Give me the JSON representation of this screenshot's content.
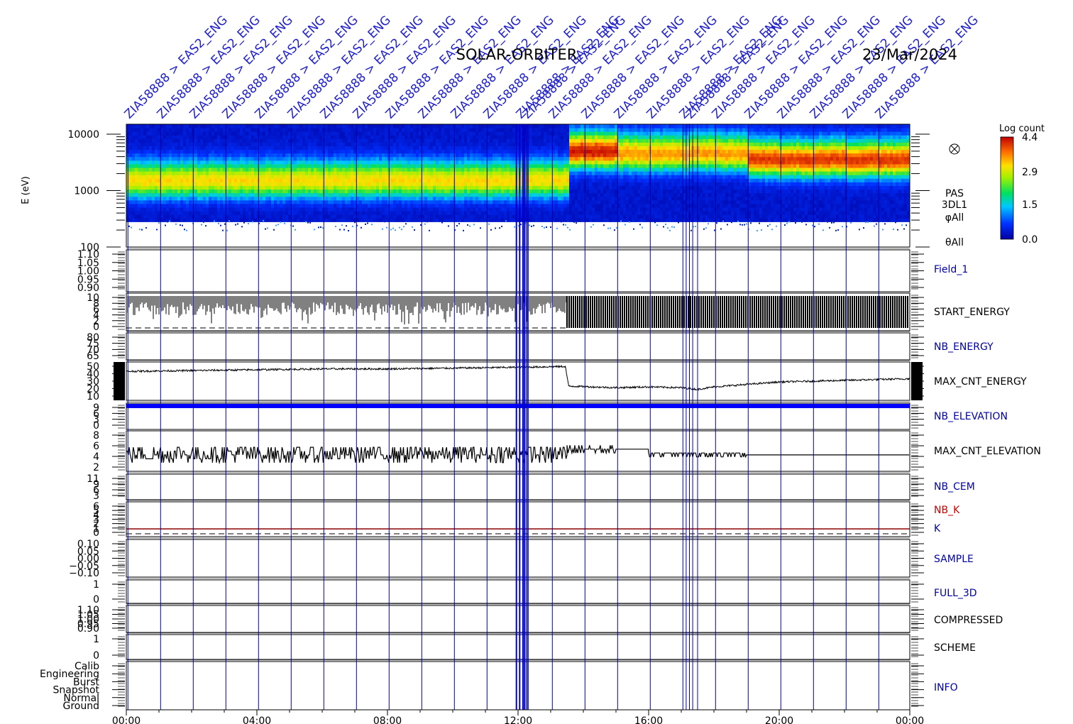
{
  "header": {
    "mission": "SOLAR-ORBITER",
    "date": "23/Mar/2024"
  },
  "event_label": "ZIA58888 > EAS2_ENG",
  "event_hours": [
    0.05,
    1.05,
    2.05,
    3.05,
    4.05,
    5.05,
    6.05,
    7.05,
    8.05,
    9.05,
    10.05,
    11.05,
    12.05,
    12.25,
    13.05,
    14.05,
    15.05,
    16.05,
    17.05,
    17.25,
    18.05,
    19.05,
    20.05,
    21.05,
    22.05,
    23.05
  ],
  "chart_data": {
    "type": "heatmap",
    "x_axis": {
      "range_hours": [
        0,
        24
      ],
      "tick_labels": [
        "00:00",
        "04:00",
        "08:00",
        "12:00",
        "16:00",
        "20:00",
        "00:00"
      ]
    },
    "spectrogram": {
      "ylabel": "E (eV)",
      "y_scale": "log",
      "y_range": [
        100,
        15000
      ],
      "y_ticks": [
        "10000",
        "1000",
        "100"
      ],
      "label_lines": [
        "PAS",
        "3DL1",
        "φAll",
        "θAll"
      ],
      "colorbar": {
        "title": "Log count",
        "ticks": [
          "4.4",
          "2.9",
          "1.5",
          "0.0"
        ],
        "range": [
          0.0,
          4.4
        ]
      },
      "peak_energy_segments": [
        {
          "from_hour": 0,
          "to_hour": 13.5,
          "peak_eV": 1500,
          "peak_log_count": 3.2
        },
        {
          "from_hour": 13.5,
          "to_hour": 15.0,
          "peak_eV": 5000,
          "peak_log_count": 4.4
        },
        {
          "from_hour": 15.0,
          "to_hour": 19.0,
          "peak_eV": 4500,
          "peak_log_count": 3.6
        },
        {
          "from_hour": 19.0,
          "to_hour": 24.0,
          "peak_eV": 3500,
          "peak_log_count": 4.2
        }
      ]
    },
    "panels": [
      {
        "name": "Field_1",
        "label_color": "#0000aa",
        "ticks": [
          "1.10",
          "1.05",
          "1.00",
          "0.95",
          "0.90"
        ],
        "y_range": [
          0.9,
          1.1
        ]
      },
      {
        "name": "START_ENERGY",
        "label_color": "#000000",
        "ticks": [
          "10",
          "8",
          "6",
          "4",
          "2",
          "0"
        ],
        "y_range": [
          0,
          10
        ],
        "series": [
          {
            "from_hour": 0,
            "to_hour": 13.5,
            "style": "dense-bars",
            "typical": 8
          },
          {
            "from_hour": 13.5,
            "to_hour": 24,
            "style": "solid-fill",
            "typical": 10
          }
        ]
      },
      {
        "name": "NB_ENERGY",
        "label_color": "#0000aa",
        "ticks": [
          "80",
          "75",
          "70",
          "65"
        ],
        "y_range": [
          65,
          80
        ]
      },
      {
        "name": "MAX_CNT_ENERGY",
        "label_color": "#000000",
        "ticks": [
          "50",
          "40",
          "30",
          "20",
          "10"
        ],
        "y_range": [
          10,
          50
        ],
        "series": [
          {
            "x_hours": [
              0,
              2,
              4,
              6,
              8,
              10,
              12,
              13.45,
              13.55,
              15,
              16,
              17,
              17.5,
              18,
              19,
              20,
              22,
              24
            ],
            "values": [
              42,
              43,
              44,
              45,
              45,
              46,
              47,
              48,
              24,
              22,
              23,
              22,
              20,
              23,
              26,
              29,
              31,
              33
            ]
          }
        ]
      },
      {
        "name": "NB_ELEVATION",
        "label_color": "#0000aa",
        "ticks": [
          "9",
          "6",
          "3",
          "0"
        ],
        "y_range": [
          0,
          9
        ],
        "series": [
          {
            "from_hour": 0,
            "to_hour": 24,
            "value": 9,
            "color": "#0000ff"
          }
        ]
      },
      {
        "name": "MAX_CNT_ELEVATION",
        "label_color": "#000000",
        "ticks": [
          "8",
          "6",
          "4",
          "2"
        ],
        "y_range": [
          0,
          9
        ],
        "series": [
          {
            "segments": [
              {
                "from_hour": 0,
                "to_hour": 13.5,
                "min": 1.5,
                "max": 6
              },
              {
                "from_hour": 13.5,
                "to_hour": 15.0,
                "min": 4,
                "max": 6
              },
              {
                "from_hour": 15.0,
                "to_hour": 16.0,
                "min": 5,
                "max": 5.5
              },
              {
                "from_hour": 16.0,
                "to_hour": 19.0,
                "min": 3,
                "max": 4.5
              },
              {
                "from_hour": 19.0,
                "to_hour": 24.0,
                "min": 3.5,
                "max": 4
              }
            ]
          }
        ]
      },
      {
        "name": "NB_CEM",
        "label_color": "#0000aa",
        "ticks": [
          "11",
          "9",
          "6",
          "3"
        ],
        "y_range": [
          0,
          11
        ]
      },
      {
        "name": "NB_K",
        "label_color": "#cc0000",
        "ticks": [
          "6",
          "5",
          "4",
          "3",
          "2",
          "1",
          "0"
        ],
        "y_range": [
          0,
          6
        ],
        "extra_label": "K",
        "extra_label_color": "#0000aa",
        "series": [
          {
            "from_hour": 0,
            "to_hour": 24,
            "value": 1,
            "color": "#8b0000"
          }
        ]
      },
      {
        "name": "SAMPLE",
        "label_color": "#0000aa",
        "ticks": [
          "0.10",
          "0.05",
          "0.00",
          "−0.05",
          "−0.10"
        ],
        "y_range": [
          -0.1,
          0.1
        ]
      },
      {
        "name": "FULL_3D",
        "label_color": "#0000aa",
        "ticks": [
          "1",
          "0"
        ],
        "y_range": [
          0,
          1
        ]
      },
      {
        "name": "COMPRESSED",
        "label_color": "#000000",
        "ticks": [
          "1.10",
          "1.05",
          "1.00",
          "0.95",
          "0.90"
        ],
        "y_range": [
          0.9,
          1.1
        ]
      },
      {
        "name": "SCHEME",
        "label_color": "#000000",
        "ticks": [
          "1",
          "0"
        ],
        "y_range": [
          0,
          1
        ]
      },
      {
        "name": "INFO",
        "label_color": "#0000aa",
        "ticks": [
          "Calib",
          "Engineering",
          "Burst",
          "Snapshot",
          "Normal",
          "Ground"
        ],
        "y_range": [
          0,
          6
        ]
      }
    ]
  }
}
